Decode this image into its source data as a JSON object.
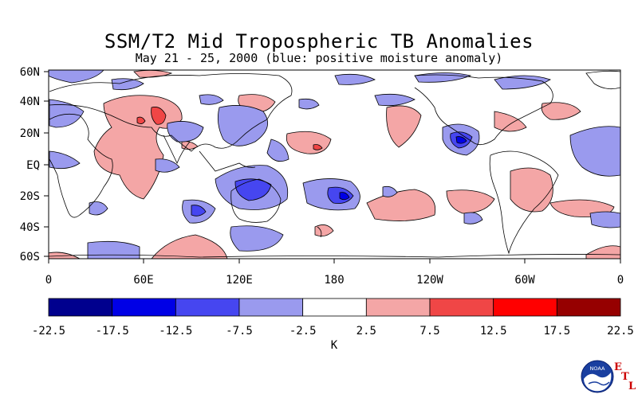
{
  "title": "SSM/T2 Mid Tropospheric TB Anomalies",
  "subtitle": "May 21 - 25, 2000 (blue: positive moisture anomaly)",
  "lat_labels": [
    "60N",
    "40N",
    "20N",
    "EQ",
    "20S",
    "40S",
    "60S"
  ],
  "lon_labels": [
    "0",
    "60E",
    "120E",
    "180",
    "120W",
    "60W",
    "0"
  ],
  "colorbar": {
    "unit": "K",
    "tick_labels": [
      "-22.5",
      "-17.5",
      "-12.5",
      "-7.5",
      "-2.5",
      "2.5",
      "7.5",
      "12.5",
      "17.5",
      "22.5"
    ],
    "colors": [
      "#00008e",
      "#0000e6",
      "#4646f0",
      "#9a9aee",
      "#ffffff",
      "#f4a6a6",
      "#f04646",
      "#ff0000",
      "#960000"
    ]
  },
  "logo": {
    "text": "NOAA",
    "letters": [
      "E",
      "T",
      "L"
    ]
  }
}
